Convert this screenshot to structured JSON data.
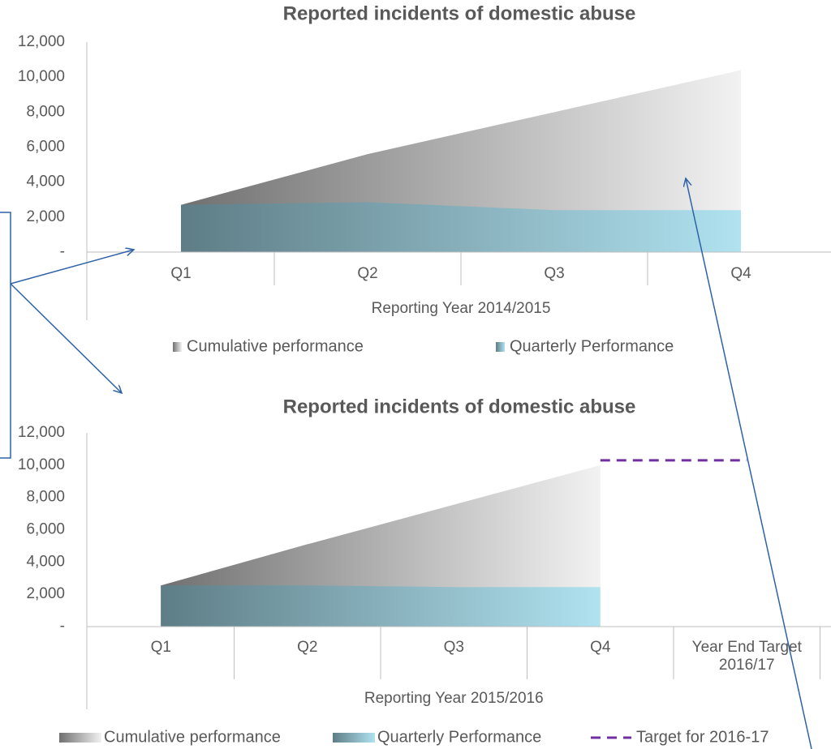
{
  "chart_data": [
    {
      "type": "area",
      "title": "Reported incidents of domestic abuse",
      "x_label": "Reporting Year 2014/2015",
      "categories": [
        "Q1",
        "Q2",
        "Q3",
        "Q4"
      ],
      "series": [
        {
          "name": "Cumulative performance",
          "gradient": [
            "#707070",
            "#f2f2f2"
          ],
          "values": [
            2700,
            5600,
            8000,
            10400
          ]
        },
        {
          "name": "Quarterly Performance",
          "gradient": [
            "#5e7d86",
            "#b0e2f0"
          ],
          "values": [
            2700,
            2850,
            2400,
            2400
          ]
        }
      ],
      "ylim": [
        0,
        12000
      ],
      "yticks": [
        {
          "value": 0,
          "label": "-"
        },
        {
          "value": 2000,
          "label": "2,000"
        },
        {
          "value": 4000,
          "label": "4,000"
        },
        {
          "value": 6000,
          "label": "6,000"
        },
        {
          "value": 8000,
          "label": "8,000"
        },
        {
          "value": 10000,
          "label": "10,000"
        },
        {
          "value": 12000,
          "label": "12,000"
        }
      ],
      "grid": false,
      "legend": "bottom"
    },
    {
      "type": "area",
      "title": "Reported incidents of domestic abuse",
      "x_label": "Reporting Year 2015/2016",
      "categories": [
        "Q1",
        "Q2",
        "Q3",
        "Q4",
        "Year End Target 2016/17"
      ],
      "series": [
        {
          "name": "Cumulative performance",
          "gradient": [
            "#707070",
            "#f2f2f2"
          ],
          "values": [
            2550,
            5100,
            7550,
            10000,
            null
          ]
        },
        {
          "name": "Quarterly Performance",
          "gradient": [
            "#5e7d86",
            "#b0e2f0"
          ],
          "values": [
            2550,
            2550,
            2450,
            2450,
            null
          ]
        },
        {
          "name": "Target for 2016-17",
          "type": "line",
          "color": "#7030a0",
          "dashed": true,
          "values": [
            null,
            null,
            null,
            10300,
            10300
          ]
        }
      ],
      "ylim": [
        0,
        12000
      ],
      "yticks": [
        {
          "value": 0,
          "label": "-"
        },
        {
          "value": 2000,
          "label": "2,000"
        },
        {
          "value": 4000,
          "label": "4,000"
        },
        {
          "value": 6000,
          "label": "6,000"
        },
        {
          "value": 8000,
          "label": "8,000"
        },
        {
          "value": 10000,
          "label": "10,000"
        },
        {
          "value": 12000,
          "label": "12,000"
        }
      ],
      "grid": false,
      "legend": "bottom"
    }
  ]
}
